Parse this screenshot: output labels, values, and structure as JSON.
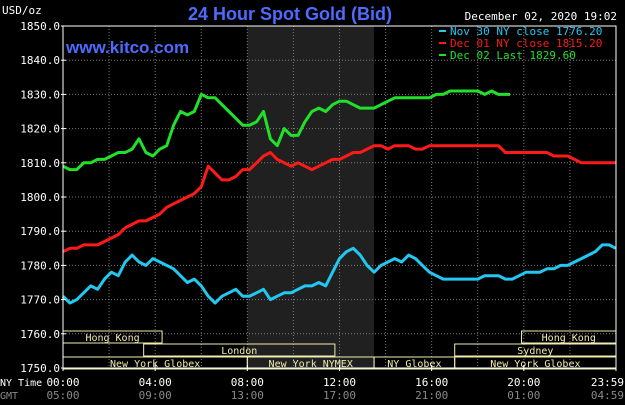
{
  "chart_data": {
    "type": "line",
    "title": "24 Hour Spot Gold (Bid)",
    "watermark": "www.kitco.com",
    "timestamp": "December 02, 2020 19:02",
    "y_unit_label": "USD/oz",
    "ylim": [
      1750,
      1850
    ],
    "y_ticks": [
      "1850.0",
      "1840.0",
      "1830.0",
      "1820.0",
      "1810.0",
      "1800.0",
      "1790.0",
      "1780.0",
      "1770.0",
      "1760.0",
      "1750.0"
    ],
    "x_ticks_ny": [
      "00:00",
      "04:00",
      "08:00",
      "12:00",
      "16:00",
      "20:00",
      "23:59"
    ],
    "x_ticks_gmt": [
      "05:00",
      "09:00",
      "13:00",
      "17:00",
      "21:00",
      "01:00",
      "04:59"
    ],
    "x_row_labels": [
      "NY Time",
      "GMT"
    ],
    "x_range_hours": [
      0,
      24
    ],
    "shaded_band_hours": [
      8.0,
      13.5
    ],
    "grid": true,
    "legend_position": "top-right",
    "colors": {
      "background": "#000000",
      "plot_background": "#000000",
      "shaded_band": "#1f201f",
      "grid": "#7a7a7a",
      "axis_text": "#ffffff",
      "title": "#4d6bff",
      "watermark": "#4d6bff",
      "session_box": "#f2ecb0",
      "session_text": "#f2ecb0"
    },
    "series": [
      {
        "name": "Nov 30 NY close 1776.20",
        "color": "#22c8f0",
        "x": [
          0.0,
          0.3,
          0.6,
          0.9,
          1.2,
          1.5,
          1.8,
          2.1,
          2.4,
          2.7,
          3.0,
          3.3,
          3.6,
          3.9,
          4.2,
          4.5,
          4.8,
          5.1,
          5.4,
          5.7,
          6.0,
          6.3,
          6.6,
          6.9,
          7.2,
          7.5,
          7.8,
          8.1,
          8.4,
          8.7,
          9.0,
          9.3,
          9.6,
          9.9,
          10.2,
          10.5,
          10.8,
          11.1,
          11.4,
          11.7,
          12.0,
          12.3,
          12.6,
          12.9,
          13.2,
          13.5,
          13.8,
          14.1,
          14.4,
          14.7,
          15.0,
          15.3,
          15.6,
          15.9,
          16.2,
          16.5,
          16.8,
          17.1,
          17.4,
          17.7,
          18.0,
          18.3,
          18.6,
          18.9,
          19.2,
          19.5,
          19.8,
          20.1,
          20.4,
          20.7,
          21.0,
          21.3,
          21.6,
          21.9,
          22.2,
          22.5,
          22.8,
          23.1,
          23.4,
          23.7,
          23.99
        ],
        "values": [
          1771,
          1769,
          1770,
          1772,
          1774,
          1773,
          1776,
          1778,
          1777,
          1781,
          1783,
          1781,
          1780,
          1782,
          1781,
          1780,
          1779,
          1777,
          1775,
          1776,
          1774,
          1771,
          1769,
          1771,
          1772,
          1773,
          1771,
          1771,
          1772,
          1773,
          1770,
          1771,
          1772,
          1772,
          1773,
          1774,
          1774,
          1775,
          1774,
          1778,
          1782,
          1784,
          1785,
          1783,
          1780,
          1778,
          1780,
          1781,
          1782,
          1781,
          1783,
          1782,
          1780,
          1778,
          1777,
          1776,
          1776,
          1776,
          1776,
          1776,
          1776,
          1777,
          1777,
          1777,
          1776,
          1776,
          1777,
          1778,
          1778,
          1778,
          1779,
          1779,
          1780,
          1780,
          1781,
          1782,
          1783,
          1784,
          1786,
          1786,
          1785
        ]
      },
      {
        "name": "Dec 01 NY close 1815.20",
        "color": "#ff1a1a",
        "x": [
          0.0,
          0.3,
          0.6,
          0.9,
          1.2,
          1.5,
          1.8,
          2.1,
          2.4,
          2.7,
          3.0,
          3.3,
          3.6,
          3.9,
          4.2,
          4.5,
          4.8,
          5.1,
          5.4,
          5.7,
          6.0,
          6.3,
          6.6,
          6.9,
          7.2,
          7.5,
          7.8,
          8.1,
          8.4,
          8.7,
          9.0,
          9.3,
          9.6,
          9.9,
          10.2,
          10.5,
          10.8,
          11.1,
          11.4,
          11.7,
          12.0,
          12.3,
          12.6,
          12.9,
          13.2,
          13.5,
          13.8,
          14.1,
          14.4,
          14.7,
          15.0,
          15.3,
          15.6,
          15.9,
          16.2,
          16.5,
          16.8,
          17.1,
          17.4,
          17.7,
          18.0,
          18.3,
          18.6,
          18.9,
          19.2,
          19.5,
          19.8,
          20.1,
          20.4,
          20.7,
          21.0,
          21.3,
          21.6,
          21.9,
          22.2,
          22.5,
          22.8,
          23.1,
          23.4,
          23.7,
          23.99
        ],
        "values": [
          1784,
          1785,
          1785,
          1786,
          1786,
          1786,
          1787,
          1788,
          1789,
          1791,
          1792,
          1793,
          1793,
          1794,
          1795,
          1797,
          1798,
          1799,
          1800,
          1801,
          1803,
          1809,
          1807,
          1805,
          1805,
          1806,
          1808,
          1808,
          1810,
          1812,
          1813,
          1811,
          1810,
          1809,
          1810,
          1809,
          1808,
          1809,
          1810,
          1811,
          1811,
          1812,
          1813,
          1813,
          1814,
          1815,
          1815,
          1814,
          1815,
          1815,
          1815,
          1814,
          1814,
          1815,
          1815,
          1815,
          1815,
          1815,
          1815,
          1815,
          1815,
          1815,
          1815,
          1815,
          1813,
          1813,
          1813,
          1813,
          1813,
          1813,
          1813,
          1812,
          1812,
          1812,
          1811,
          1810,
          1810,
          1810,
          1810,
          1810,
          1810
        ]
      },
      {
        "name": "Dec 02 Last 1829.60",
        "color": "#22e02a",
        "x": [
          0.0,
          0.3,
          0.6,
          0.9,
          1.2,
          1.5,
          1.8,
          2.1,
          2.4,
          2.7,
          3.0,
          3.3,
          3.6,
          3.9,
          4.2,
          4.5,
          4.8,
          5.1,
          5.4,
          5.7,
          6.0,
          6.3,
          6.6,
          6.9,
          7.2,
          7.5,
          7.8,
          8.1,
          8.4,
          8.7,
          9.0,
          9.3,
          9.6,
          9.9,
          10.2,
          10.5,
          10.8,
          11.1,
          11.4,
          11.7,
          12.0,
          12.3,
          12.6,
          12.9,
          13.2,
          13.5,
          13.8,
          14.1,
          14.4,
          14.7,
          15.0,
          15.3,
          15.6,
          15.9,
          16.2,
          16.5,
          16.8,
          17.1,
          17.4,
          17.7,
          18.0,
          18.3,
          18.6,
          18.9,
          19.2,
          19.4
        ],
        "values": [
          1809,
          1808,
          1808,
          1810,
          1810,
          1811,
          1811,
          1812,
          1813,
          1813,
          1814,
          1817,
          1813,
          1812,
          1814,
          1815,
          1821,
          1825,
          1824,
          1825,
          1830,
          1829,
          1829,
          1827,
          1825,
          1823,
          1821,
          1821,
          1822,
          1825,
          1817,
          1815,
          1820,
          1818,
          1818,
          1822,
          1825,
          1826,
          1825,
          1827,
          1828,
          1828,
          1827,
          1826,
          1826,
          1826,
          1827,
          1828,
          1829,
          1829,
          1829,
          1829,
          1829,
          1829,
          1830,
          1830,
          1831,
          1831,
          1831,
          1831,
          1831,
          1830,
          1831,
          1830,
          1830,
          1830
        ]
      }
    ],
    "sessions": [
      {
        "label": "Hong Kong",
        "row": 0,
        "start": 0.0,
        "end": 4.3
      },
      {
        "label": "Hong Kong",
        "row": 0,
        "start": 19.9,
        "end": 24.0
      },
      {
        "label": "London",
        "row": 1,
        "start": 3.5,
        "end": 11.8
      },
      {
        "label": "Sydney",
        "row": 1,
        "start": 17.0,
        "end": 24.0
      },
      {
        "label": "New York Globex",
        "row": 2,
        "start": 0.0,
        "end": 8.0
      },
      {
        "label": "New York NYMEX",
        "row": 2,
        "start": 8.0,
        "end": 13.5
      },
      {
        "label": "NY Globex",
        "row": 2,
        "start": 13.5,
        "end": 17.0
      },
      {
        "label": "New York Globex",
        "row": 2,
        "start": 17.0,
        "end": 24.0
      }
    ]
  }
}
